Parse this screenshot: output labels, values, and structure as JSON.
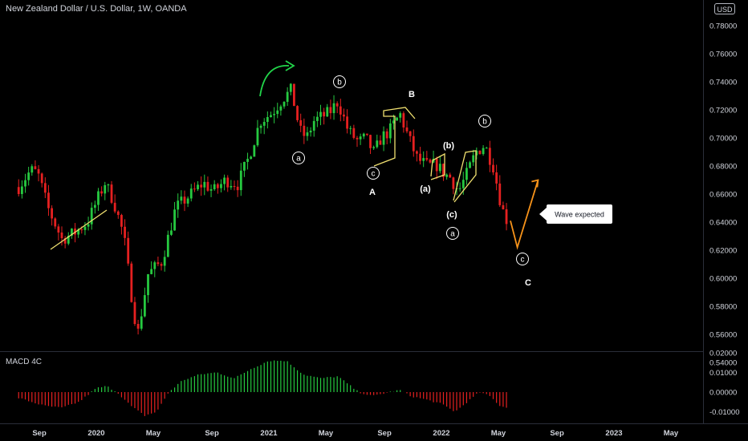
{
  "header": {
    "title": "New Zealand Dollar / U.S. Dollar, 1W, OANDA",
    "currency": "USD"
  },
  "macd_panel": {
    "title": "MACD 4C"
  },
  "price_axis": {
    "ticks": [
      "0.78000",
      "0.76000",
      "0.74000",
      "0.72000",
      "0.70000",
      "0.68000",
      "0.66000",
      "0.64000",
      "0.62000",
      "0.60000",
      "0.58000",
      "0.56000",
      "0.54000"
    ]
  },
  "macd_axis": {
    "ticks": [
      "0.02000",
      "0.01000",
      "0.00000",
      "-0.01000"
    ]
  },
  "time_axis": {
    "labels": [
      "Sep",
      "2020",
      "May",
      "Sep",
      "2021",
      "May",
      "Sep",
      "2022",
      "May",
      "Sep",
      "2023",
      "May"
    ]
  },
  "annotations": {
    "callout": "Wave expected",
    "waves": {
      "a1": "a",
      "b1": "b",
      "c1": "c",
      "A": "A",
      "B": "B",
      "pa": "(a)",
      "pb": "(b)",
      "pc": "(c)",
      "a2": "a",
      "b2": "b",
      "c2": "c",
      "C": "C"
    }
  },
  "colors": {
    "up": "#26c940",
    "down": "#e52020",
    "trendline": "#f0e070",
    "projection": "#f7931a",
    "arrow": "#22d44a"
  },
  "chart_data": {
    "type": "candlestick",
    "title": "New Zealand Dollar / U.S. Dollar, 1W, OANDA",
    "price_range": [
      0.54,
      0.79
    ],
    "macd_range": [
      -0.014,
      0.02
    ],
    "price_path": [
      [
        2019.55,
        0.665
      ],
      [
        2019.62,
        0.677
      ],
      [
        2019.66,
        0.675
      ],
      [
        2019.72,
        0.65
      ],
      [
        2019.8,
        0.628
      ],
      [
        2019.87,
        0.632
      ],
      [
        2019.95,
        0.64
      ],
      [
        2020.02,
        0.66
      ],
      [
        2020.05,
        0.668
      ],
      [
        2020.1,
        0.655
      ],
      [
        2020.16,
        0.63
      ],
      [
        2020.21,
        0.582
      ],
      [
        2020.24,
        0.56
      ],
      [
        2020.3,
        0.603
      ],
      [
        2020.38,
        0.612
      ],
      [
        2020.46,
        0.65
      ],
      [
        2020.55,
        0.66
      ],
      [
        2020.62,
        0.668
      ],
      [
        2020.68,
        0.662
      ],
      [
        2020.75,
        0.67
      ],
      [
        2020.82,
        0.667
      ],
      [
        2020.88,
        0.685
      ],
      [
        2020.95,
        0.712
      ],
      [
        2021.02,
        0.718
      ],
      [
        2021.08,
        0.728
      ],
      [
        2021.13,
        0.734
      ],
      [
        2021.18,
        0.705
      ],
      [
        2021.22,
        0.7
      ],
      [
        2021.26,
        0.712
      ],
      [
        2021.35,
        0.718
      ],
      [
        2021.4,
        0.726
      ],
      [
        2021.46,
        0.705
      ],
      [
        2021.52,
        0.697
      ],
      [
        2021.56,
        0.7
      ],
      [
        2021.61,
        0.689
      ],
      [
        2021.65,
        0.7
      ],
      [
        2021.7,
        0.705
      ],
      [
        2021.76,
        0.717
      ],
      [
        2021.81,
        0.7
      ],
      [
        2021.86,
        0.685
      ],
      [
        2021.92,
        0.68
      ],
      [
        2021.97,
        0.681
      ],
      [
        2022.02,
        0.674
      ],
      [
        2022.05,
        0.672
      ],
      [
        2022.1,
        0.662
      ],
      [
        2022.15,
        0.675
      ],
      [
        2022.2,
        0.69
      ],
      [
        2022.25,
        0.695
      ],
      [
        2022.3,
        0.68
      ],
      [
        2022.35,
        0.65
      ],
      [
        2022.38,
        0.641
      ]
    ],
    "projection": [
      [
        2022.4,
        0.641
      ],
      [
        2022.44,
        0.622
      ],
      [
        2022.56,
        0.67
      ]
    ],
    "macd_histogram_path": [
      [
        2019.55,
        -0.003
      ],
      [
        2019.7,
        -0.007
      ],
      [
        2019.8,
        -0.008
      ],
      [
        2019.9,
        -0.005
      ],
      [
        2020.0,
        0.002
      ],
      [
        2020.06,
        0.003
      ],
      [
        2020.12,
        0.0
      ],
      [
        2020.2,
        -0.007
      ],
      [
        2020.28,
        -0.012
      ],
      [
        2020.35,
        -0.01
      ],
      [
        2020.42,
        0.0
      ],
      [
        2020.5,
        0.006
      ],
      [
        2020.6,
        0.009
      ],
      [
        2020.7,
        0.01
      ],
      [
        2020.8,
        0.007
      ],
      [
        2020.9,
        0.012
      ],
      [
        2021.0,
        0.016
      ],
      [
        2021.1,
        0.016
      ],
      [
        2021.2,
        0.009
      ],
      [
        2021.3,
        0.007
      ],
      [
        2021.4,
        0.008
      ],
      [
        2021.46,
        0.004
      ],
      [
        2021.52,
        0.0
      ],
      [
        2021.6,
        -0.002
      ],
      [
        2021.7,
        0.0
      ],
      [
        2021.76,
        0.001
      ],
      [
        2021.82,
        -0.002
      ],
      [
        2021.92,
        -0.004
      ],
      [
        2022.0,
        -0.006
      ],
      [
        2022.08,
        -0.01
      ],
      [
        2022.15,
        -0.005
      ],
      [
        2022.22,
        0.0
      ],
      [
        2022.28,
        -0.002
      ],
      [
        2022.34,
        -0.007
      ],
      [
        2022.38,
        -0.008
      ]
    ]
  }
}
